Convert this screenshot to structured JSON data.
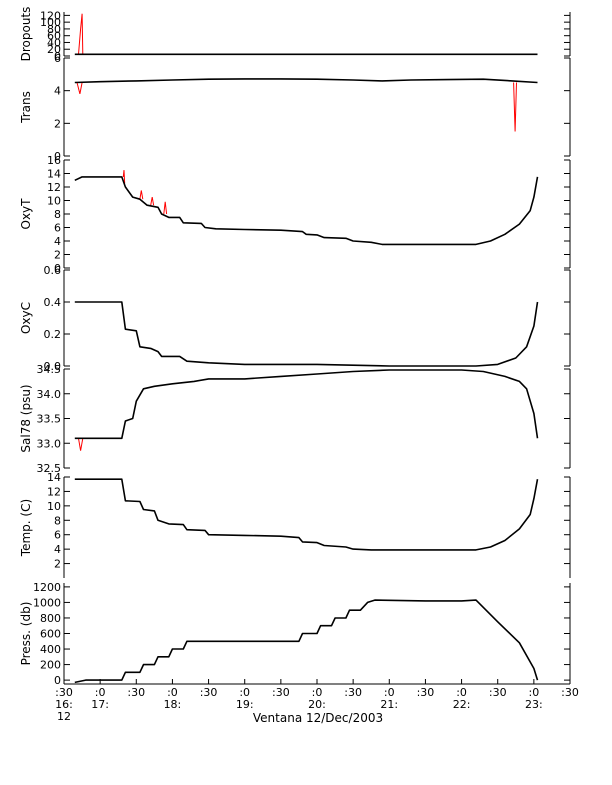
{
  "chart_data": {
    "type": "line",
    "xlabel": "Ventana 12/Dec/2003",
    "colors": {
      "trace": "#000000",
      "spikes": "#ff0000"
    },
    "x_ticks": [
      {
        "t": 16.5,
        "line1": ":30",
        "line2": "16:",
        "line3": "12"
      },
      {
        "t": 17.0,
        "line1": ":0",
        "line2": "17:",
        "line3": ""
      },
      {
        "t": 17.5,
        "line1": ":30",
        "line2": "",
        "line3": ""
      },
      {
        "t": 18.0,
        "line1": ":0",
        "line2": "18:",
        "line3": ""
      },
      {
        "t": 18.5,
        "line1": ":30",
        "line2": "",
        "line3": ""
      },
      {
        "t": 19.0,
        "line1": ":0",
        "line2": "19:",
        "line3": ""
      },
      {
        "t": 19.5,
        "line1": ":30",
        "line2": "",
        "line3": ""
      },
      {
        "t": 20.0,
        "line1": ":0",
        "line2": "20:",
        "line3": ""
      },
      {
        "t": 20.5,
        "line1": ":30",
        "line2": "",
        "line3": ""
      },
      {
        "t": 21.0,
        "line1": ":0",
        "line2": "21:",
        "line3": ""
      },
      {
        "t": 21.5,
        "line1": ":30",
        "line2": "",
        "line3": ""
      },
      {
        "t": 22.0,
        "line1": ":0",
        "line2": "22:",
        "line3": ""
      },
      {
        "t": 22.5,
        "line1": ":30",
        "line2": "",
        "line3": ""
      },
      {
        "t": 23.0,
        "line1": ":0",
        "line2": "23:",
        "line3": ""
      },
      {
        "t": 23.5,
        "line1": ":30",
        "line2": "",
        "line3": ""
      }
    ],
    "xlim": [
      16.5,
      23.5
    ],
    "panels": [
      {
        "name": "Dropouts",
        "ylabel": "Dropouts",
        "ylim": [
          0,
          130
        ],
        "ticks": [
          {
            "v": 0,
            "label": "0"
          },
          {
            "v": 20,
            "label": "20"
          },
          {
            "v": 40,
            "label": "40"
          },
          {
            "v": 60,
            "label": "60"
          },
          {
            "v": 80,
            "label": "80"
          },
          {
            "v": 100,
            "label": "100"
          },
          {
            "v": 120,
            "label": "120"
          }
        ],
        "series": [
          [
            16.65,
            5
          ],
          [
            23.05,
            5
          ]
        ],
        "spikes": [
          [
            [
              16.7,
              5
            ],
            [
              16.73,
              80
            ],
            [
              16.75,
              125
            ],
            [
              16.76,
              5
            ]
          ]
        ]
      },
      {
        "name": "Trans",
        "ylabel": "Trans",
        "ylim": [
          0,
          6
        ],
        "ticks": [
          {
            "v": 0,
            "label": "0"
          },
          {
            "v": 2,
            "label": "2"
          },
          {
            "v": 4,
            "label": "4"
          },
          {
            "v": 6,
            "label": "6"
          }
        ],
        "series": [
          [
            16.65,
            4.5
          ],
          [
            17.0,
            4.55
          ],
          [
            17.5,
            4.6
          ],
          [
            18.0,
            4.65
          ],
          [
            18.5,
            4.7
          ],
          [
            19.0,
            4.72
          ],
          [
            19.5,
            4.72
          ],
          [
            20.0,
            4.7
          ],
          [
            20.5,
            4.65
          ],
          [
            20.9,
            4.6
          ],
          [
            21.3,
            4.65
          ],
          [
            21.8,
            4.68
          ],
          [
            22.3,
            4.7
          ],
          [
            22.7,
            4.6
          ],
          [
            23.05,
            4.5
          ]
        ],
        "spikes": [
          [
            [
              16.68,
              4.5
            ],
            [
              16.72,
              3.8
            ],
            [
              16.75,
              4.5
            ]
          ],
          [
            [
              22.72,
              4.5
            ],
            [
              22.74,
              1.5
            ],
            [
              22.76,
              4.5
            ]
          ]
        ]
      },
      {
        "name": "OxyT",
        "ylabel": "OxyT",
        "ylim": [
          0,
          16
        ],
        "ticks": [
          {
            "v": 0,
            "label": "0"
          },
          {
            "v": 2,
            "label": "2"
          },
          {
            "v": 4,
            "label": "4"
          },
          {
            "v": 6,
            "label": "6"
          },
          {
            "v": 8,
            "label": "8"
          },
          {
            "v": 10,
            "label": "10"
          },
          {
            "v": 12,
            "label": "12"
          },
          {
            "v": 14,
            "label": "14"
          },
          {
            "v": 16,
            "label": "16"
          }
        ],
        "series": [
          [
            16.65,
            13.0
          ],
          [
            16.75,
            13.5
          ],
          [
            17.2,
            13.5
          ],
          [
            17.3,
            13.5
          ],
          [
            17.35,
            12.0
          ],
          [
            17.45,
            10.5
          ],
          [
            17.55,
            10.2
          ],
          [
            17.65,
            9.3
          ],
          [
            17.8,
            9.0
          ],
          [
            17.85,
            8.0
          ],
          [
            17.95,
            7.5
          ],
          [
            18.1,
            7.5
          ],
          [
            18.15,
            6.7
          ],
          [
            18.4,
            6.6
          ],
          [
            18.45,
            6.0
          ],
          [
            18.6,
            5.8
          ],
          [
            19.0,
            5.7
          ],
          [
            19.5,
            5.6
          ],
          [
            19.8,
            5.4
          ],
          [
            19.85,
            5.0
          ],
          [
            20.0,
            4.9
          ],
          [
            20.1,
            4.5
          ],
          [
            20.4,
            4.4
          ],
          [
            20.5,
            4.0
          ],
          [
            20.75,
            3.8
          ],
          [
            20.9,
            3.5
          ],
          [
            21.5,
            3.5
          ],
          [
            22.0,
            3.5
          ],
          [
            22.2,
            3.5
          ],
          [
            22.4,
            4.0
          ],
          [
            22.6,
            5.0
          ],
          [
            22.8,
            6.5
          ],
          [
            22.95,
            8.5
          ],
          [
            23.0,
            10.5
          ],
          [
            23.05,
            13.5
          ]
        ],
        "spikes": [
          [
            [
              17.32,
              13.5
            ],
            [
              17.33,
              14.5
            ],
            [
              17.34,
              12.5
            ]
          ],
          [
            [
              17.55,
              10.2
            ],
            [
              17.57,
              11.5
            ],
            [
              17.59,
              10.2
            ]
          ],
          [
            [
              17.7,
              9.3
            ],
            [
              17.72,
              10.5
            ],
            [
              17.74,
              9.3
            ]
          ],
          [
            [
              17.88,
              8.0
            ],
            [
              17.9,
              9.8
            ],
            [
              17.92,
              8.0
            ]
          ]
        ]
      },
      {
        "name": "OxyC",
        "ylabel": "OxyC",
        "ylim": [
          0,
          0.6
        ],
        "ticks": [
          {
            "v": 0,
            "label": "0.0"
          },
          {
            "v": 0.2,
            "label": "0.2"
          },
          {
            "v": 0.4,
            "label": "0.4"
          },
          {
            "v": 0.6,
            "label": "0.6"
          }
        ],
        "series": [
          [
            16.65,
            0.4
          ],
          [
            17.3,
            0.4
          ],
          [
            17.35,
            0.23
          ],
          [
            17.5,
            0.22
          ],
          [
            17.55,
            0.12
          ],
          [
            17.7,
            0.11
          ],
          [
            17.8,
            0.09
          ],
          [
            17.85,
            0.06
          ],
          [
            18.1,
            0.06
          ],
          [
            18.2,
            0.03
          ],
          [
            18.5,
            0.02
          ],
          [
            19.0,
            0.01
          ],
          [
            20.0,
            0.01
          ],
          [
            21.0,
            0.0
          ],
          [
            22.0,
            0.0
          ],
          [
            22.2,
            0.0
          ],
          [
            22.5,
            0.01
          ],
          [
            22.75,
            0.05
          ],
          [
            22.9,
            0.12
          ],
          [
            23.0,
            0.25
          ],
          [
            23.05,
            0.4
          ]
        ],
        "spikes": []
      },
      {
        "name": "Sal78",
        "ylabel": "Sal78 (psu)",
        "ylim": [
          32.5,
          34.5
        ],
        "ticks": [
          {
            "v": 32.5,
            "label": "32.5"
          },
          {
            "v": 33.0,
            "label": "33.0"
          },
          {
            "v": 33.5,
            "label": "33.5"
          },
          {
            "v": 34.0,
            "label": "34.0"
          },
          {
            "v": 34.5,
            "label": "34.5"
          }
        ],
        "series": [
          [
            16.65,
            33.1
          ],
          [
            17.3,
            33.1
          ],
          [
            17.35,
            33.45
          ],
          [
            17.45,
            33.5
          ],
          [
            17.5,
            33.85
          ],
          [
            17.6,
            34.1
          ],
          [
            17.75,
            34.15
          ],
          [
            18.0,
            34.2
          ],
          [
            18.3,
            34.25
          ],
          [
            18.5,
            34.3
          ],
          [
            19.0,
            34.3
          ],
          [
            19.5,
            34.35
          ],
          [
            20.0,
            34.4
          ],
          [
            20.5,
            34.45
          ],
          [
            21.0,
            34.48
          ],
          [
            21.5,
            34.48
          ],
          [
            22.0,
            34.48
          ],
          [
            22.3,
            34.45
          ],
          [
            22.6,
            34.35
          ],
          [
            22.8,
            34.25
          ],
          [
            22.9,
            34.1
          ],
          [
            23.0,
            33.6
          ],
          [
            23.05,
            33.1
          ]
        ],
        "spikes": [
          [
            [
              16.7,
              33.1
            ],
            [
              16.73,
              32.85
            ],
            [
              16.76,
              33.1
            ]
          ]
        ]
      },
      {
        "name": "Temp",
        "ylabel": "Temp. (C)",
        "ylim": [
          0,
          14
        ],
        "ticks": [
          {
            "v": 2,
            "label": "2"
          },
          {
            "v": 4,
            "label": "4"
          },
          {
            "v": 6,
            "label": "6"
          },
          {
            "v": 8,
            "label": "8"
          },
          {
            "v": 10,
            "label": "10"
          },
          {
            "v": 12,
            "label": "12"
          },
          {
            "v": 14,
            "label": "14"
          }
        ],
        "series": [
          [
            16.65,
            13.7
          ],
          [
            17.3,
            13.7
          ],
          [
            17.35,
            10.7
          ],
          [
            17.55,
            10.6
          ],
          [
            17.6,
            9.5
          ],
          [
            17.75,
            9.3
          ],
          [
            17.8,
            8.0
          ],
          [
            17.95,
            7.5
          ],
          [
            18.15,
            7.4
          ],
          [
            18.2,
            6.7
          ],
          [
            18.45,
            6.6
          ],
          [
            18.5,
            6.0
          ],
          [
            19.0,
            5.9
          ],
          [
            19.5,
            5.8
          ],
          [
            19.75,
            5.6
          ],
          [
            19.8,
            5.0
          ],
          [
            20.0,
            4.9
          ],
          [
            20.1,
            4.5
          ],
          [
            20.4,
            4.3
          ],
          [
            20.5,
            4.0
          ],
          [
            20.75,
            3.9
          ],
          [
            21.0,
            3.9
          ],
          [
            21.5,
            3.9
          ],
          [
            22.0,
            3.9
          ],
          [
            22.2,
            3.9
          ],
          [
            22.4,
            4.3
          ],
          [
            22.6,
            5.2
          ],
          [
            22.8,
            6.8
          ],
          [
            22.95,
            8.8
          ],
          [
            23.0,
            11.0
          ],
          [
            23.05,
            13.7
          ]
        ],
        "spikes": []
      },
      {
        "name": "Press",
        "ylabel": "Press. (db)",
        "ylim": [
          -50,
          1250
        ],
        "ticks": [
          {
            "v": 0,
            "label": "0"
          },
          {
            "v": 200,
            "label": "200"
          },
          {
            "v": 400,
            "label": "400"
          },
          {
            "v": 600,
            "label": "600"
          },
          {
            "v": 800,
            "label": "800"
          },
          {
            "v": 1000,
            "label": "1000"
          },
          {
            "v": 1200,
            "label": "1200"
          }
        ],
        "series": [
          [
            16.65,
            -30
          ],
          [
            16.75,
            -10
          ],
          [
            16.8,
            0
          ],
          [
            17.3,
            0
          ],
          [
            17.35,
            100
          ],
          [
            17.55,
            100
          ],
          [
            17.6,
            200
          ],
          [
            17.75,
            200
          ],
          [
            17.8,
            300
          ],
          [
            17.95,
            300
          ],
          [
            18.0,
            400
          ],
          [
            18.15,
            400
          ],
          [
            18.2,
            500
          ],
          [
            19.75,
            500
          ],
          [
            19.8,
            600
          ],
          [
            20.0,
            600
          ],
          [
            20.05,
            700
          ],
          [
            20.2,
            700
          ],
          [
            20.25,
            800
          ],
          [
            20.4,
            800
          ],
          [
            20.45,
            900
          ],
          [
            20.6,
            900
          ],
          [
            20.7,
            1000
          ],
          [
            20.8,
            1030
          ],
          [
            21.5,
            1020
          ],
          [
            22.0,
            1020
          ],
          [
            22.2,
            1030
          ],
          [
            22.5,
            750
          ],
          [
            22.8,
            480
          ],
          [
            23.0,
            150
          ],
          [
            23.05,
            0
          ]
        ],
        "spikes": []
      }
    ]
  }
}
